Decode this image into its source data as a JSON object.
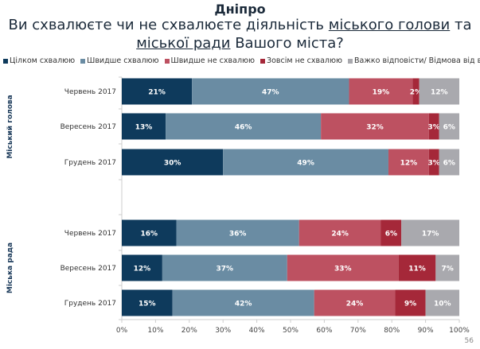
{
  "header": {
    "title": "Дніпро",
    "subtitle_parts": [
      "Ви схвалюєте чи не схвалюєте діяльність ",
      "міського голови",
      " та ",
      "міської ради",
      " Вашого міста?"
    ]
  },
  "page_number": "56",
  "chart_data": {
    "type": "bar",
    "orientation": "horizontal",
    "stacked": true,
    "legend_position": "top",
    "xlim": [
      0,
      100
    ],
    "x_ticks": [
      "0%",
      "10%",
      "20%",
      "30%",
      "40%",
      "50%",
      "60%",
      "70%",
      "80%",
      "90%",
      "100%"
    ],
    "series_names": [
      "Цілком схвалюю",
      "Швидше схвалюю",
      "Швидше не схвалюю",
      "Зовсім не схвалюю",
      "Важко відповісти/ Відмова від відповіді"
    ],
    "colors": [
      "#0e3a5c",
      "#6a8ca3",
      "#bd5161",
      "#a52839",
      "#a9a9ae"
    ],
    "groups": [
      {
        "label": "Міський голова",
        "rows": [
          {
            "label": "Червень 2017",
            "values": [
              21,
              47,
              19,
              2,
              12
            ]
          },
          {
            "label": "Вересень 2017",
            "values": [
              13,
              46,
              32,
              3,
              6
            ]
          },
          {
            "label": "Грудень 2017",
            "values": [
              30,
              49,
              12,
              3,
              6
            ]
          }
        ]
      },
      {
        "label": "Міська рада",
        "rows": [
          {
            "label": "Червень 2017",
            "values": [
              16,
              36,
              24,
              6,
              17
            ]
          },
          {
            "label": "Вересень 2017",
            "values": [
              12,
              37,
              33,
              11,
              7
            ]
          },
          {
            "label": "Грудень 2017",
            "values": [
              15,
              42,
              24,
              9,
              10
            ]
          }
        ]
      }
    ]
  }
}
